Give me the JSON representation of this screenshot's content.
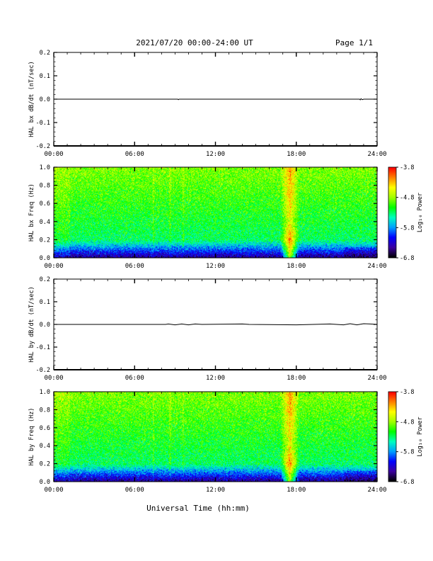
{
  "header": {
    "date_range": "2021/07/20  00:00-24:00 UT",
    "page": "Page 1/1"
  },
  "x_axis_label": "Universal Time (hh:mm)",
  "colorscale": {
    "label": "Log₁₀ Power",
    "colors": [
      "#000000",
      "#3c00a0",
      "#0000ff",
      "#00a0ff",
      "#00ffc0",
      "#00ff00",
      "#a0ff00",
      "#ffff00",
      "#ff8000",
      "#ff0000"
    ]
  },
  "chart_data": [
    {
      "type": "line",
      "ylabel": "HAL bx dB/dt (nT/sec)",
      "xlim": [
        0,
        24
      ],
      "ylim": [
        -0.2,
        0.2
      ],
      "xticks": [
        "00:00",
        "06:00",
        "12:00",
        "18:00",
        "24:00"
      ],
      "yticks": [
        "-0.2",
        "-0.1",
        "0.0",
        "0.1",
        "0.2"
      ],
      "series": [
        {
          "x": [
            0,
            9.2,
            9.25,
            9.3,
            22.7,
            22.75,
            22.8,
            22.9,
            23.0,
            24
          ],
          "y": [
            0,
            0,
            -0.002,
            0,
            0,
            -0.003,
            0.002,
            -0.002,
            0,
            0
          ]
        }
      ]
    },
    {
      "type": "heatmap",
      "ylabel": "HAL bx Freq (Hz)",
      "xlim": [
        0,
        24
      ],
      "ylim": [
        0,
        1.0
      ],
      "xticks": [
        "00:00",
        "06:00",
        "12:00",
        "18:00",
        "24:00"
      ],
      "yticks": [
        "0.0",
        "0.2",
        "0.4",
        "0.6",
        "0.8",
        "1.0"
      ],
      "zlim": [
        -6.8,
        -3.8
      ],
      "zticks": [
        "-3.8",
        "-4.8",
        "-5.8",
        "-6.8"
      ],
      "zlabel": "Log₁₀ Power",
      "features": [
        {
          "t_start": 16.8,
          "t_end": 18.2,
          "f_max": 0.95,
          "note": "broadband enhancement ~17:00-18:00 UT"
        },
        {
          "t_start": 0.5,
          "t_end": 16.0,
          "f_max": 0.15,
          "note": "low power at low frequency"
        }
      ]
    },
    {
      "type": "line",
      "ylabel": "HAL by dB/dt (nT/sec)",
      "xlim": [
        0,
        24
      ],
      "ylim": [
        -0.2,
        0.2
      ],
      "xticks": [
        "00:00",
        "06:00",
        "12:00",
        "18:00",
        "24:00"
      ],
      "yticks": [
        "-0.2",
        "-0.1",
        "0.0",
        "0.1",
        "0.2"
      ],
      "series": [
        {
          "x": [
            0,
            8.3,
            8.5,
            9.0,
            9.5,
            10.0,
            10.5,
            11.0,
            14.0,
            14.5,
            18.0,
            20.5,
            21.5,
            22.0,
            22.5,
            23.0,
            23.5,
            24
          ],
          "y": [
            0,
            0,
            0.002,
            -0.002,
            0.002,
            -0.002,
            0.002,
            0,
            0.002,
            0,
            -0.002,
            0.002,
            -0.002,
            0.003,
            -0.002,
            0.003,
            0.002,
            0
          ]
        }
      ]
    },
    {
      "type": "heatmap",
      "ylabel": "HAL by Freq (Hz)",
      "xlim": [
        0,
        24
      ],
      "ylim": [
        0,
        1.0
      ],
      "xticks": [
        "00:00",
        "06:00",
        "12:00",
        "18:00",
        "24:00"
      ],
      "yticks": [
        "0.0",
        "0.2",
        "0.4",
        "0.6",
        "0.8",
        "1.0"
      ],
      "zlim": [
        -6.8,
        -3.8
      ],
      "zticks": [
        "-3.8",
        "-4.8",
        "-5.8",
        "-6.8"
      ],
      "zlabel": "Log₁₀ Power",
      "features": [
        {
          "t_start": 16.8,
          "t_end": 18.2,
          "f_max": 0.95,
          "note": "broadband enhancement ~17:00-18:00 UT"
        },
        {
          "t_start": 0.5,
          "t_end": 16.0,
          "f_max": 0.15,
          "note": "low power at low frequency"
        }
      ]
    }
  ]
}
